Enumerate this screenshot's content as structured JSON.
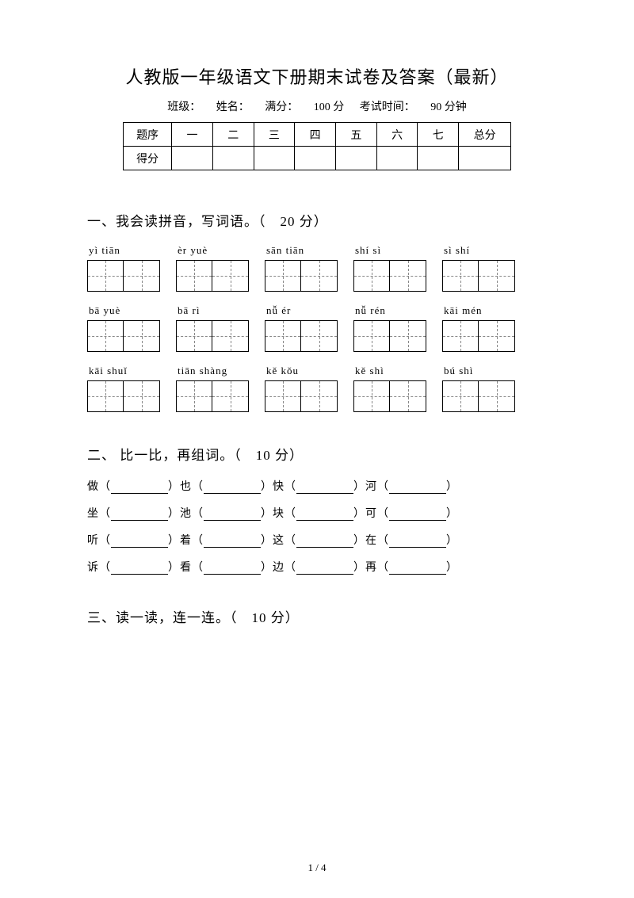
{
  "title": "人教版一年级语文下册期末试卷及答案（最新）",
  "info": {
    "class_label": "班级：",
    "name_label": "姓名：",
    "score_label": "满分：",
    "score_value": "100 分",
    "time_label": "考试时间：",
    "time_value": "90 分钟"
  },
  "scoreTable": {
    "row1": [
      "题序",
      "一",
      "二",
      "三",
      "四",
      "五",
      "六",
      "七",
      "总分"
    ],
    "row2_label": "得分"
  },
  "section1": {
    "title": "一、我会读拼音，写词语。（　20 分）",
    "rows": [
      [
        "yì tiān",
        "èr yuè",
        "sān tiān",
        "shí sì",
        "sì shí"
      ],
      [
        "bā yuè",
        "bā rì",
        "nǚ ér",
        "nǚ rén",
        "kāi mén"
      ],
      [
        "kāi shuǐ",
        "tiān shàng",
        "kě kǒu",
        "kě shì",
        "bú shì"
      ]
    ]
  },
  "section2": {
    "title": "二、 比一比，再组词。（　10 分）",
    "lines": [
      [
        "做",
        "也",
        "快",
        "河"
      ],
      [
        "坐",
        "池",
        "块",
        "可"
      ],
      [
        "听",
        "着",
        "这",
        "在"
      ],
      [
        "诉",
        "看",
        "边",
        "再"
      ]
    ]
  },
  "section3": {
    "title": "三、读一读，连一连。（　10 分）"
  },
  "pageNum": "1 / 4"
}
